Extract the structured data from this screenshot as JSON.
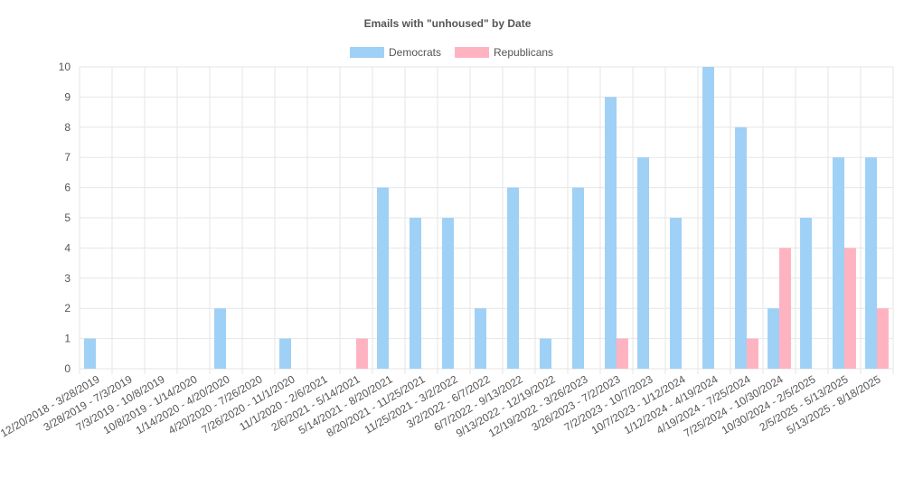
{
  "chart_data": {
    "type": "bar",
    "title": "Emails with \"unhoused\" by Date",
    "legend_position": "top",
    "grid": true,
    "ylim": [
      0,
      10
    ],
    "yticks": [
      0,
      1,
      2,
      3,
      4,
      5,
      6,
      7,
      8,
      9,
      10
    ],
    "categories": [
      "12/20/2018 - 3/28/2019",
      "3/28/2019 - 7/3/2019",
      "7/3/2019 - 10/8/2019",
      "10/8/2019 - 1/14/2020",
      "1/14/2020 - 4/20/2020",
      "4/20/2020 - 7/26/2020",
      "7/26/2020 - 11/1/2020",
      "11/1/2020 - 2/6/2021",
      "2/6/2021 - 5/14/2021",
      "5/14/2021 - 8/20/2021",
      "8/20/2021 - 11/25/2021",
      "11/25/2021 - 3/2/2022",
      "3/2/2022 - 6/7/2022",
      "6/7/2022 - 9/13/2022",
      "9/13/2022 - 12/19/2022",
      "12/19/2022 - 3/26/2023",
      "3/26/2023 - 7/2/2023",
      "7/2/2023 - 10/7/2023",
      "10/7/2023 - 1/12/2024",
      "1/12/2024 - 4/19/2024",
      "4/19/2024 - 7/25/2024",
      "7/25/2024 - 10/30/2024",
      "10/30/2024 - 2/5/2025",
      "2/5/2025 - 5/13/2025",
      "5/13/2025 - 8/18/2025"
    ],
    "series": [
      {
        "name": "Democrats",
        "color": "#9fd0f5",
        "values": [
          1,
          0,
          0,
          0,
          2,
          0,
          1,
          0,
          0,
          6,
          5,
          5,
          2,
          6,
          1,
          6,
          9,
          7,
          5,
          10,
          8,
          2,
          5,
          7,
          7
        ]
      },
      {
        "name": "Republicans",
        "color": "#ffb3c1",
        "values": [
          0,
          0,
          0,
          0,
          0,
          0,
          0,
          0,
          1,
          0,
          0,
          0,
          0,
          0,
          0,
          0,
          1,
          0,
          0,
          0,
          1,
          4,
          0,
          4,
          2
        ]
      }
    ]
  }
}
